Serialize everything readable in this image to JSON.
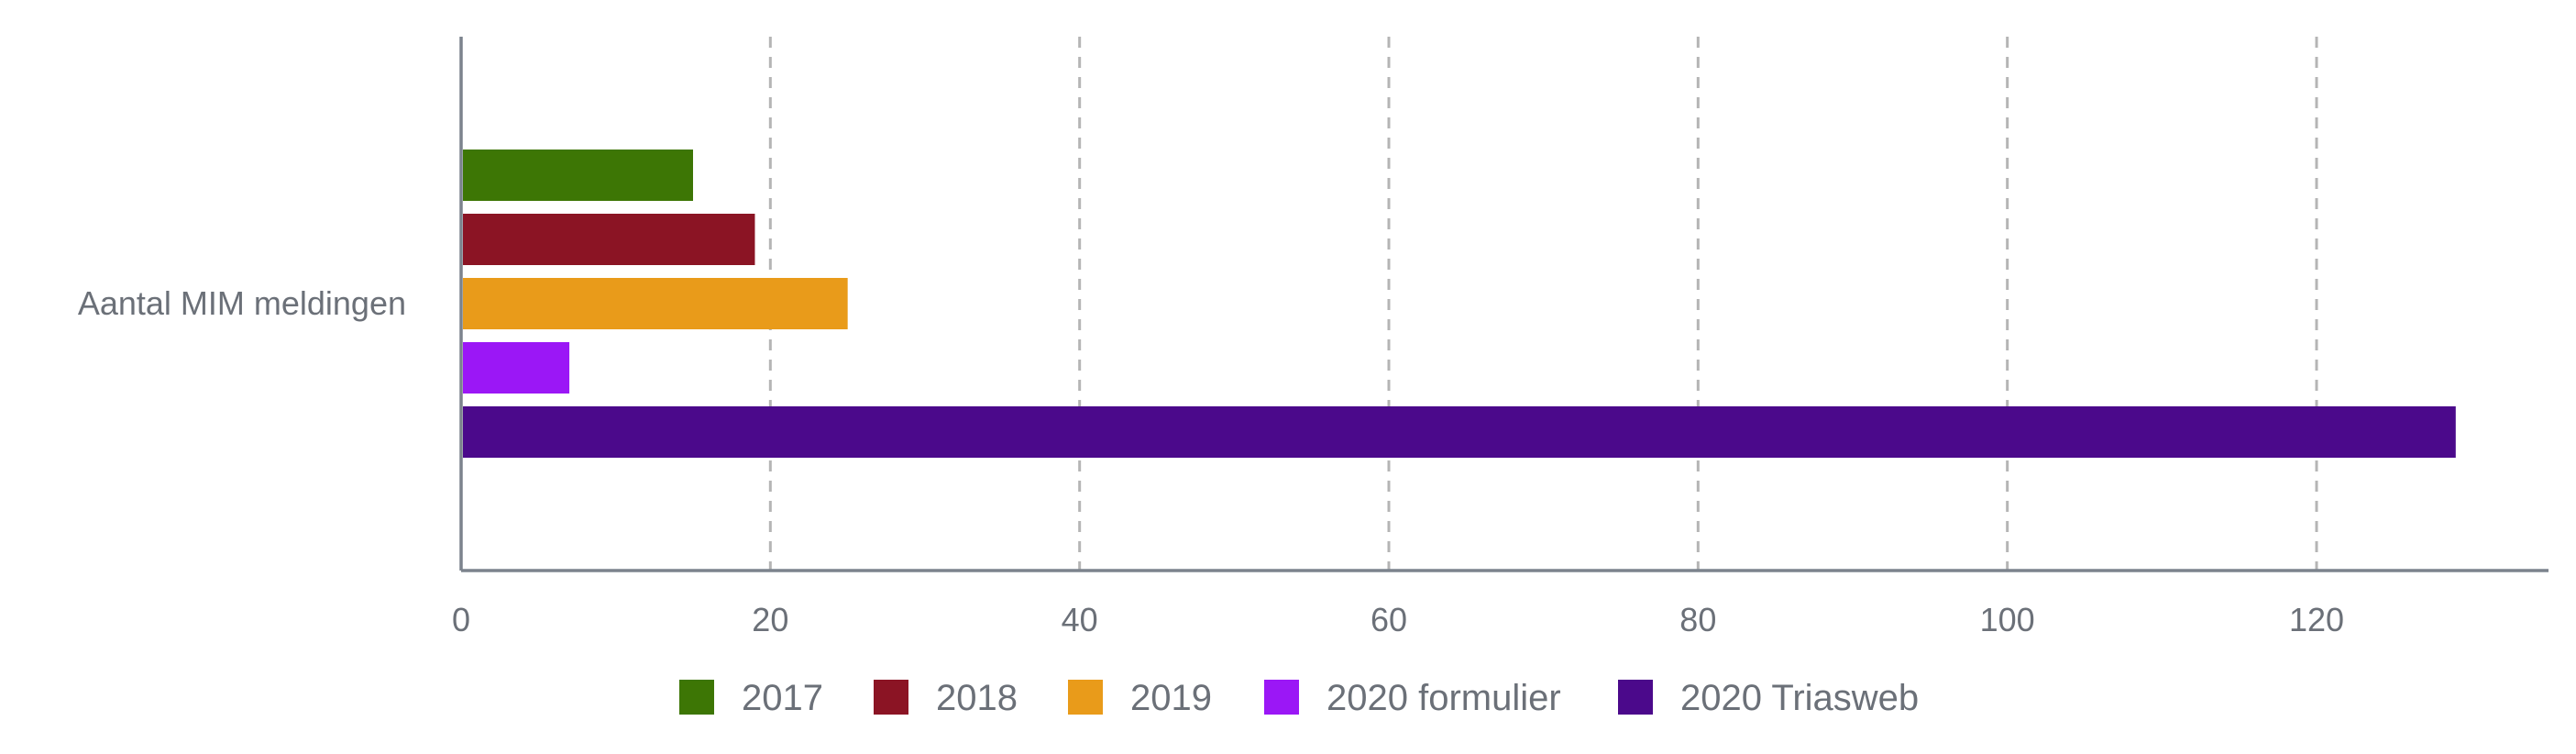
{
  "chart_data": {
    "type": "bar",
    "orientation": "horizontal",
    "categories": [
      "Aantal MIM meldingen"
    ],
    "series": [
      {
        "name": "2017",
        "values": [
          15
        ],
        "color": "#3d7605"
      },
      {
        "name": "2018",
        "values": [
          19
        ],
        "color": "#8b1424"
      },
      {
        "name": "2019",
        "values": [
          25
        ],
        "color": "#e99b1a"
      },
      {
        "name": "2020 formulier",
        "values": [
          7
        ],
        "color": "#9b17f6"
      },
      {
        "name": "2020 Triasweb",
        "values": [
          129
        ],
        "color": "#4b098b"
      }
    ],
    "x_ticks": [
      0,
      20,
      40,
      60,
      80,
      100,
      120
    ],
    "xlim": [
      0,
      135
    ],
    "grid": "vertical dashed",
    "legend_position": "bottom-center"
  }
}
